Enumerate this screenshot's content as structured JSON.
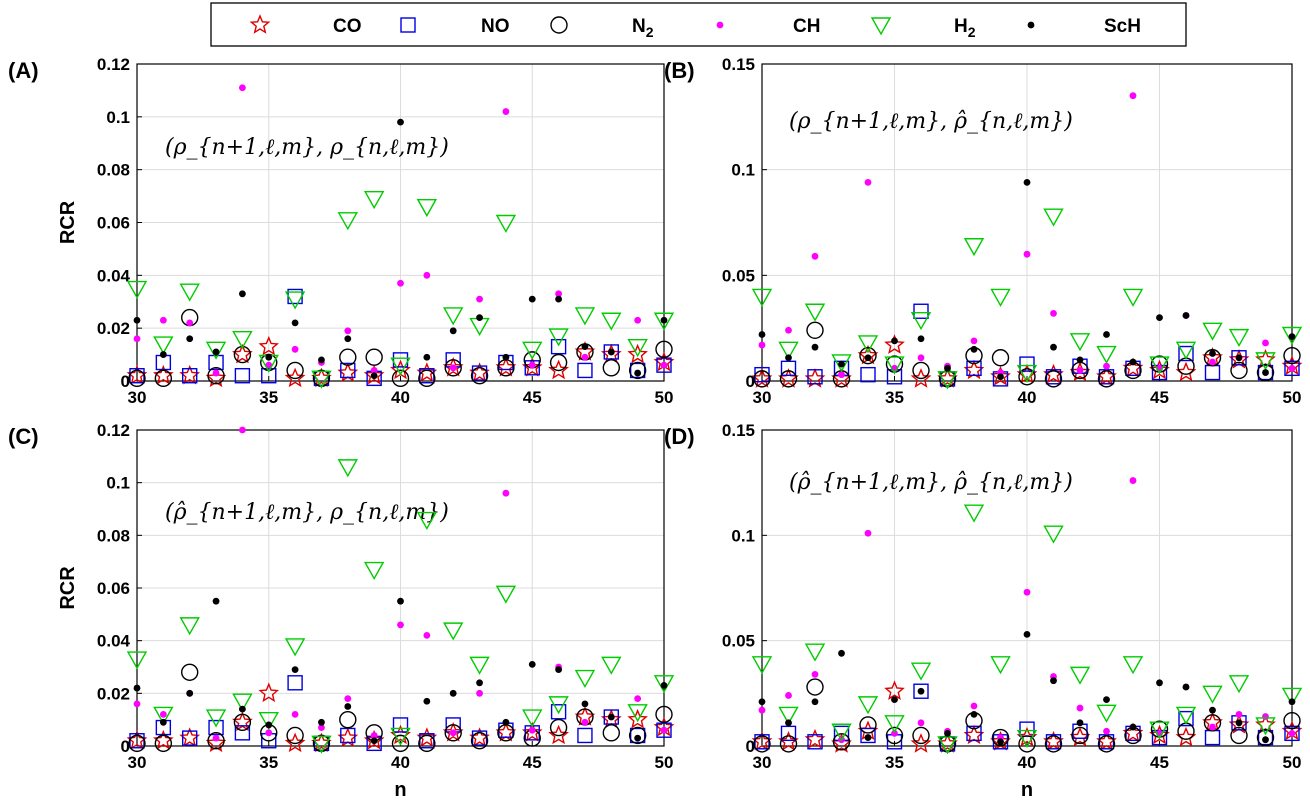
{
  "chart_data": [
    {
      "panel": "(A)",
      "type": "scatter",
      "annotation": "(ρ_{n+1,ℓ,m}, ρ_{n,ℓ,m})",
      "xlabel": "",
      "ylabel": "RCR",
      "xlim": [
        30,
        50
      ],
      "ylim": [
        0,
        0.12
      ],
      "xticks": [
        30,
        35,
        40,
        45,
        50
      ],
      "yticks": [
        0,
        0.02,
        0.04,
        0.06,
        0.08,
        0.1,
        0.12
      ],
      "ytick_labels": [
        "0",
        "0.02",
        "0.04",
        "0.06",
        "0.08",
        "0.1",
        "0.12"
      ],
      "x": [
        30,
        31,
        32,
        33,
        34,
        35,
        36,
        37,
        38,
        39,
        40,
        41,
        42,
        43,
        44,
        45,
        46,
        47,
        48,
        49,
        50
      ],
      "series": [
        {
          "name": "CO",
          "values": [
            0.002,
            0.002,
            0.002,
            0.001,
            0.01,
            0.013,
            0.001,
            0.001,
            0.003,
            0.002,
            0.004,
            0.003,
            0.005,
            0.003,
            0.005,
            0.005,
            0.004,
            0.011,
            0.01,
            0.01,
            0.007
          ]
        },
        {
          "name": "NO",
          "values": [
            0.002,
            0.007,
            0.002,
            0.007,
            0.002,
            0.002,
            0.032,
            0.001,
            0.004,
            0.001,
            0.008,
            0.002,
            0.008,
            0.003,
            0.007,
            0.005,
            0.013,
            0.004,
            0.011,
            0.004,
            0.006
          ]
        },
        {
          "name": "N2",
          "values": [
            0.001,
            0.001,
            0.024,
            0.002,
            0.01,
            0.007,
            0.004,
            0.001,
            0.009,
            0.009,
            0.001,
            0.001,
            0.005,
            0.002,
            0.005,
            0.008,
            0.007,
            0.011,
            0.005,
            0.004,
            0.012
          ]
        },
        {
          "name": "CH",
          "values": [
            0.016,
            0.023,
            0.022,
            0.003,
            0.111,
            0.006,
            0.012,
            0.007,
            0.019,
            0.004,
            0.037,
            0.04,
            0.005,
            0.031,
            0.102,
            0.006,
            0.033,
            0.009,
            0.011,
            0.023,
            0.006
          ]
        },
        {
          "name": "H2",
          "values": [
            0.035,
            0.014,
            0.034,
            0.012,
            0.016,
            0.007,
            0.031,
            0.001,
            0.061,
            0.069,
            0.006,
            0.066,
            0.025,
            0.021,
            0.06,
            0.012,
            0.017,
            0.025,
            0.023,
            0.013,
            0.023
          ]
        },
        {
          "name": "ScH",
          "values": [
            0.023,
            0.01,
            0.016,
            0.011,
            0.033,
            0.009,
            0.022,
            0.008,
            0.016,
            0.002,
            0.098,
            0.009,
            0.019,
            0.024,
            0.009,
            0.031,
            0.031,
            0.013,
            0.011,
            0.003,
            0.023
          ]
        }
      ]
    },
    {
      "panel": "(B)",
      "type": "scatter",
      "annotation": "(ρ_{n+1,ℓ,m}, ρ̂_{n,ℓ,m})",
      "xlabel": "",
      "ylabel": "",
      "xlim": [
        30,
        50
      ],
      "ylim": [
        0,
        0.15
      ],
      "xticks": [
        30,
        35,
        40,
        45,
        50
      ],
      "yticks": [
        0,
        0.05,
        0.1,
        0.15
      ],
      "ytick_labels": [
        "0",
        "0.05",
        "0.1",
        "0.15"
      ],
      "x": [
        30,
        31,
        32,
        33,
        34,
        35,
        36,
        37,
        38,
        39,
        40,
        41,
        42,
        43,
        44,
        45,
        46,
        47,
        48,
        49,
        50
      ],
      "series": [
        {
          "name": "CO",
          "values": [
            0.001,
            0.001,
            0.001,
            0.001,
            0.012,
            0.017,
            0.001,
            0.001,
            0.005,
            0.002,
            0.003,
            0.003,
            0.004,
            0.002,
            0.006,
            0.005,
            0.004,
            0.011,
            0.01,
            0.01,
            0.007
          ]
        },
        {
          "name": "NO",
          "values": [
            0.003,
            0.006,
            0.002,
            0.006,
            0.003,
            0.002,
            0.033,
            0.001,
            0.006,
            0.001,
            0.008,
            0.002,
            0.007,
            0.002,
            0.006,
            0.004,
            0.013,
            0.004,
            0.011,
            0.004,
            0.006
          ]
        },
        {
          "name": "N2",
          "values": [
            0.001,
            0.001,
            0.024,
            0.001,
            0.012,
            0.008,
            0.005,
            0.001,
            0.012,
            0.011,
            0.002,
            0.001,
            0.005,
            0.001,
            0.005,
            0.008,
            0.007,
            0.011,
            0.005,
            0.004,
            0.012
          ]
        },
        {
          "name": "CH",
          "values": [
            0.017,
            0.024,
            0.059,
            0.003,
            0.094,
            0.006,
            0.011,
            0.007,
            0.019,
            0.004,
            0.06,
            0.032,
            0.005,
            0.007,
            0.135,
            0.006,
            0.031,
            0.009,
            0.011,
            0.018,
            0.006
          ]
        },
        {
          "name": "H2",
          "values": [
            0.04,
            0.015,
            0.033,
            0.009,
            0.018,
            0.008,
            0.029,
            0.001,
            0.064,
            0.04,
            0.004,
            0.078,
            0.019,
            0.013,
            0.04,
            0.008,
            0.015,
            0.024,
            0.021,
            0.01,
            0.022
          ]
        },
        {
          "name": "ScH",
          "values": [
            0.022,
            0.011,
            0.016,
            0.008,
            0.011,
            0.019,
            0.02,
            0.006,
            0.015,
            0.002,
            0.094,
            0.016,
            0.01,
            0.022,
            0.009,
            0.03,
            0.031,
            0.013,
            0.011,
            0.004,
            0.021
          ]
        }
      ]
    },
    {
      "panel": "(C)",
      "type": "scatter",
      "annotation": "(ρ̂_{n+1,ℓ,m}, ρ_{n,ℓ,m})",
      "xlabel": "n",
      "ylabel": "RCR",
      "xlim": [
        30,
        50
      ],
      "ylim": [
        0,
        0.12
      ],
      "xticks": [
        30,
        35,
        40,
        45,
        50
      ],
      "yticks": [
        0,
        0.02,
        0.04,
        0.06,
        0.08,
        0.1,
        0.12
      ],
      "ytick_labels": [
        "0",
        "0.02",
        "0.04",
        "0.06",
        "0.08",
        "0.1",
        "0.12"
      ],
      "x": [
        30,
        31,
        32,
        33,
        34,
        35,
        36,
        37,
        38,
        39,
        40,
        41,
        42,
        43,
        44,
        45,
        46,
        47,
        48,
        49,
        50
      ],
      "series": [
        {
          "name": "CO",
          "values": [
            0.002,
            0.002,
            0.003,
            0.001,
            0.009,
            0.02,
            0.001,
            0.001,
            0.003,
            0.002,
            0.004,
            0.003,
            0.005,
            0.003,
            0.005,
            0.005,
            0.004,
            0.011,
            0.01,
            0.01,
            0.007
          ]
        },
        {
          "name": "NO",
          "values": [
            0.002,
            0.007,
            0.003,
            0.007,
            0.005,
            0.002,
            0.024,
            0.001,
            0.004,
            0.001,
            0.008,
            0.002,
            0.008,
            0.003,
            0.006,
            0.005,
            0.013,
            0.004,
            0.011,
            0.004,
            0.006
          ]
        },
        {
          "name": "N2",
          "values": [
            0.001,
            0.001,
            0.028,
            0.002,
            0.009,
            0.005,
            0.004,
            0.001,
            0.01,
            0.005,
            0.001,
            0.001,
            0.005,
            0.002,
            0.005,
            0.003,
            0.007,
            0.011,
            0.005,
            0.004,
            0.012
          ]
        },
        {
          "name": "CH",
          "values": [
            0.016,
            0.012,
            0.02,
            0.003,
            0.12,
            0.005,
            0.012,
            0.007,
            0.018,
            0.004,
            0.046,
            0.042,
            0.005,
            0.02,
            0.096,
            0.006,
            0.03,
            0.009,
            0.011,
            0.018,
            0.006
          ]
        },
        {
          "name": "H2",
          "values": [
            0.033,
            0.012,
            0.046,
            0.011,
            0.017,
            0.01,
            0.038,
            0.001,
            0.106,
            0.067,
            0.004,
            0.086,
            0.044,
            0.031,
            0.058,
            0.011,
            0.016,
            0.026,
            0.031,
            0.013,
            0.024
          ]
        },
        {
          "name": "ScH",
          "values": [
            0.022,
            0.009,
            0.02,
            0.055,
            0.014,
            0.008,
            0.029,
            0.009,
            0.015,
            0.002,
            0.055,
            0.017,
            0.02,
            0.024,
            0.009,
            0.031,
            0.029,
            0.016,
            0.011,
            0.003,
            0.023
          ]
        }
      ]
    },
    {
      "panel": "(D)",
      "type": "scatter",
      "annotation": "(ρ̂_{n+1,ℓ,m}, ρ̂_{n,ℓ,m})",
      "xlabel": "n",
      "ylabel": "",
      "xlim": [
        30,
        50
      ],
      "ylim": [
        0,
        0.15
      ],
      "xticks": [
        30,
        35,
        40,
        45,
        50
      ],
      "yticks": [
        0,
        0.05,
        0.1,
        0.15
      ],
      "ytick_labels": [
        "0",
        "0.05",
        "0.1",
        "0.15"
      ],
      "x": [
        30,
        31,
        32,
        33,
        34,
        35,
        36,
        37,
        38,
        39,
        40,
        41,
        42,
        43,
        44,
        45,
        46,
        47,
        48,
        49,
        50
      ],
      "series": [
        {
          "name": "CO",
          "values": [
            0.002,
            0.002,
            0.003,
            0.001,
            0.007,
            0.026,
            0.001,
            0.001,
            0.005,
            0.002,
            0.004,
            0.002,
            0.004,
            0.002,
            0.006,
            0.005,
            0.004,
            0.011,
            0.01,
            0.01,
            0.007
          ]
        },
        {
          "name": "NO",
          "values": [
            0.002,
            0.006,
            0.002,
            0.006,
            0.005,
            0.002,
            0.026,
            0.001,
            0.006,
            0.002,
            0.008,
            0.002,
            0.007,
            0.002,
            0.006,
            0.004,
            0.013,
            0.004,
            0.011,
            0.004,
            0.006
          ]
        },
        {
          "name": "N2",
          "values": [
            0.001,
            0.001,
            0.028,
            0.002,
            0.01,
            0.005,
            0.005,
            0.001,
            0.012,
            0.004,
            0.001,
            0.001,
            0.005,
            0.001,
            0.005,
            0.008,
            0.007,
            0.011,
            0.005,
            0.004,
            0.012
          ]
        },
        {
          "name": "CH",
          "values": [
            0.017,
            0.024,
            0.034,
            0.003,
            0.101,
            0.006,
            0.011,
            0.007,
            0.019,
            0.004,
            0.073,
            0.033,
            0.018,
            0.007,
            0.126,
            0.006,
            0.028,
            0.009,
            0.015,
            0.014,
            0.006
          ]
        },
        {
          "name": "H2",
          "values": [
            0.039,
            0.015,
            0.045,
            0.007,
            0.02,
            0.011,
            0.036,
            0.001,
            0.111,
            0.039,
            0.004,
            0.101,
            0.034,
            0.016,
            0.039,
            0.008,
            0.015,
            0.025,
            0.03,
            0.01,
            0.024
          ]
        },
        {
          "name": "ScH",
          "values": [
            0.021,
            0.011,
            0.021,
            0.044,
            0.004,
            0.022,
            0.026,
            0.006,
            0.015,
            0.002,
            0.053,
            0.031,
            0.011,
            0.022,
            0.009,
            0.03,
            0.028,
            0.017,
            0.011,
            0.003,
            0.021
          ]
        }
      ]
    }
  ],
  "legend": {
    "placement": "top-center",
    "entries": [
      {
        "label": "CO",
        "sub": "",
        "marker": "star",
        "color": "#e00000",
        "filled": false
      },
      {
        "label": "NO",
        "sub": "",
        "marker": "square",
        "color": "#0000e0",
        "filled": false
      },
      {
        "label": "N",
        "sub": "2",
        "marker": "circle",
        "color": "#000000",
        "filled": false
      },
      {
        "label": "CH",
        "sub": "",
        "marker": "dot",
        "color": "#ff00ff",
        "filled": true
      },
      {
        "label": "H",
        "sub": "2",
        "marker": "triangle",
        "color": "#00cc00",
        "filled": false
      },
      {
        "label": "ScH",
        "sub": "",
        "marker": "dot",
        "color": "#000000",
        "filled": true
      }
    ]
  },
  "colors": {
    "grid": "#dcdcdc",
    "axis": "#000000"
  },
  "grid": true
}
